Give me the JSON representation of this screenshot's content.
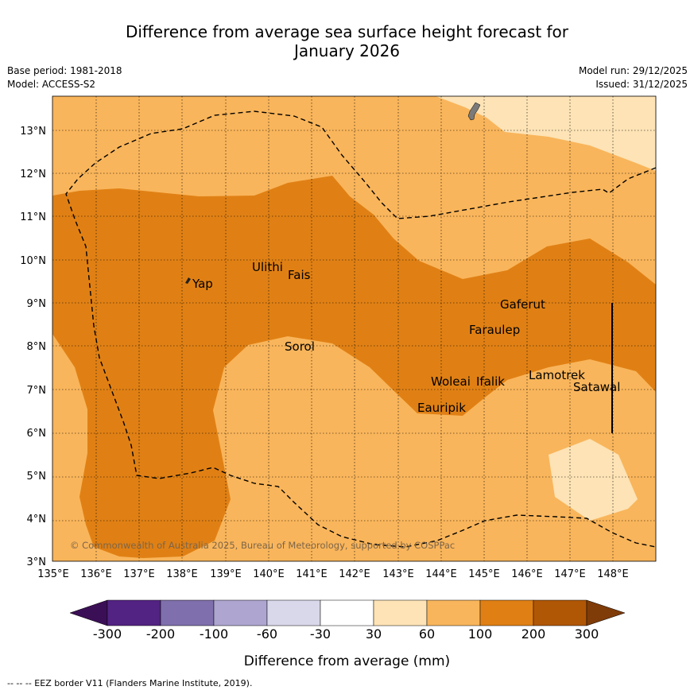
{
  "title_line1": "Difference from average sea surface height forecast for",
  "title_line2": "January 2026",
  "meta": {
    "base_period": "Base period: 1981-2018",
    "model": "Model: ACCESS-S2",
    "model_run": "Model run: 29/12/2025",
    "issued": "Issued: 31/12/2025"
  },
  "map": {
    "lon_ticks": [
      "135°E",
      "136°E",
      "137°E",
      "138°E",
      "139°E",
      "140°E",
      "141°E",
      "142°E",
      "143°E",
      "144°E",
      "145°E",
      "146°E",
      "147°E",
      "148°E"
    ],
    "lat_ticks": [
      "3°N",
      "4°N",
      "5°N",
      "6°N",
      "7°N",
      "8°N",
      "9°N",
      "10°N",
      "11°N",
      "12°N",
      "13°N"
    ],
    "places": [
      "Yap",
      "Ulithi",
      "Fais",
      "Sorol",
      "Gaferut",
      "Faraulep",
      "Woleai",
      "Ifalik",
      "Lamotrek",
      "Satawal",
      "Eauripik"
    ],
    "copyright": "© Commonwealth of Australia 2025, Bureau of Meteorology, supported by COSPPac",
    "colors": {
      "c30_60": "#fde3b5",
      "c60_100": "#f9b55b",
      "c100_200": "#e08014",
      "land": "#7a7a7a"
    }
  },
  "colorbar": {
    "ticks": [
      "-300",
      "-200",
      "-100",
      "-60",
      "-30",
      "30",
      "60",
      "100",
      "200",
      "300"
    ],
    "colors": [
      "#3b0f55",
      "#522383",
      "#7f6fac",
      "#aea6d0",
      "#d9d8ea",
      "#ffffff",
      "#fde3b5",
      "#f9b55b",
      "#e08014",
      "#b05706",
      "#7f3b08"
    ],
    "label": "Difference from average (mm)"
  },
  "footnote": "--  --  -- EEZ border V11 (Flanders Marine Institute, 2019)."
}
